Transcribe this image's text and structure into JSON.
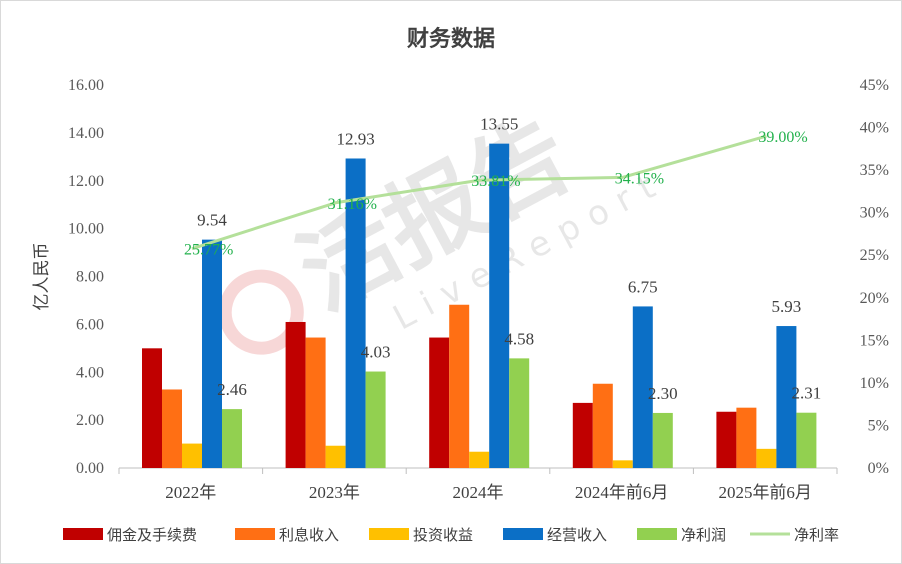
{
  "chart_data": {
    "type": "bar",
    "title": "财务数据",
    "ylabel": "亿人民币",
    "categories": [
      "2022年",
      "2023年",
      "2024年",
      "2024年前6月",
      "2025年前6月"
    ],
    "ylim": [
      0,
      16
    ],
    "y_ticks": [
      "0.00",
      "2.00",
      "4.00",
      "6.00",
      "8.00",
      "10.00",
      "12.00",
      "14.00",
      "16.00"
    ],
    "y2lim": [
      0,
      45
    ],
    "y2_ticks": [
      "0%",
      "5%",
      "10%",
      "15%",
      "20%",
      "25%",
      "30%",
      "35%",
      "40%",
      "45%"
    ],
    "series": [
      {
        "name": "佣金及手续费",
        "type": "bar",
        "color": "#c00000",
        "values": [
          5.0,
          6.1,
          5.45,
          2.72,
          2.35
        ]
      },
      {
        "name": "利息收入",
        "type": "bar",
        "color": "#ff6f14",
        "values": [
          3.28,
          5.45,
          6.82,
          3.52,
          2.52
        ]
      },
      {
        "name": "投资收益",
        "type": "bar",
        "color": "#ffc000",
        "values": [
          1.02,
          0.93,
          0.68,
          0.32,
          0.8
        ]
      },
      {
        "name": "经营收入",
        "type": "bar",
        "color": "#0b6fc6",
        "values": [
          9.54,
          12.93,
          13.55,
          6.75,
          5.93
        ],
        "labels": [
          "9.54",
          "12.93",
          "13.55",
          "6.75",
          "5.93"
        ]
      },
      {
        "name": "净利润",
        "type": "bar",
        "color": "#92d050",
        "values": [
          2.46,
          4.03,
          4.58,
          2.3,
          2.31
        ],
        "labels": [
          "2.46",
          "4.03",
          "4.58",
          "2.30",
          "2.31"
        ]
      },
      {
        "name": "净利率",
        "type": "line",
        "axis": "right",
        "color": "#b4e09a",
        "label_color": "#22b14c",
        "values": [
          25.77,
          31.16,
          33.81,
          34.15,
          39.0
        ],
        "labels": [
          "25.77%",
          "31.16%",
          "33.81%",
          "34.15%",
          "39.00%"
        ]
      }
    ],
    "legend_position": "bottom",
    "grid": false
  },
  "watermark": {
    "main": "活报告",
    "sub": "LiveReport"
  }
}
